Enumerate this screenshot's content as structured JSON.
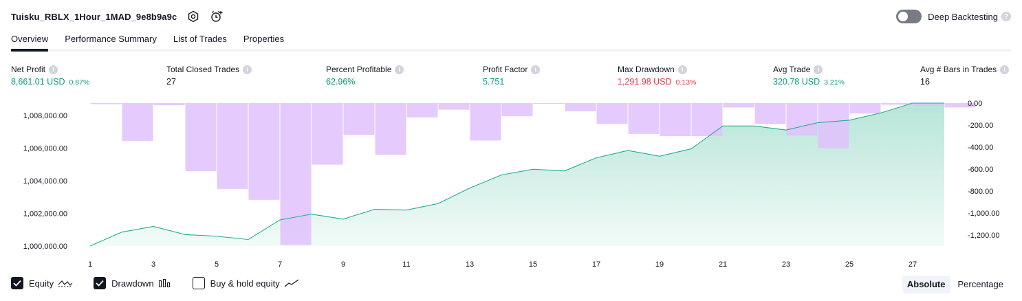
{
  "header": {
    "strategy_name": "Tuisku_RBLX_1Hour_1MAD_9e8b9a9c",
    "settings_icon": "settings-icon",
    "alert_icon": "add-alert-icon",
    "deep_backtesting_label": "Deep Backtesting",
    "deep_backtesting_on": false
  },
  "tabs": [
    {
      "label": "Overview",
      "active": true
    },
    {
      "label": "Performance Summary",
      "active": false
    },
    {
      "label": "List of Trades",
      "active": false
    },
    {
      "label": "Properties",
      "active": false
    }
  ],
  "metrics": [
    {
      "label": "Net Profit",
      "value": "8,661.01 USD",
      "pct": "0.87%",
      "tone": "pos"
    },
    {
      "label": "Total Closed Trades",
      "value": "27",
      "pct": "",
      "tone": "neu"
    },
    {
      "label": "Percent Profitable",
      "value": "62.96%",
      "pct": "",
      "tone": "pos"
    },
    {
      "label": "Profit Factor",
      "value": "5.751",
      "pct": "",
      "tone": "pos"
    },
    {
      "label": "Max Drawdown",
      "value": "1,291.98 USD",
      "pct": "0.13%",
      "tone": "neg"
    },
    {
      "label": "Avg Trade",
      "value": "320.78 USD",
      "pct": "3.21%",
      "tone": "pos"
    },
    {
      "label": "Avg # Bars in Trades",
      "value": "16",
      "pct": "",
      "tone": "neu"
    }
  ],
  "legend": {
    "equity_label": "Equity",
    "equity_checked": true,
    "drawdown_label": "Drawdown",
    "drawdown_checked": true,
    "buyhold_label": "Buy & hold equity",
    "buyhold_checked": false
  },
  "modes": {
    "absolute_label": "Absolute",
    "percentage_label": "Percentage",
    "active": "Absolute"
  },
  "colors": {
    "equity_line": "#22ab94",
    "equity_fill_top": "#b7e5d8",
    "equity_fill_bottom": "#f2fbf8",
    "drawdown_bar": "#e1c1fd",
    "positive": "#089981",
    "negative": "#f23645"
  },
  "chart_data": {
    "type": "area",
    "x_ticks": [
      "1",
      "3",
      "5",
      "7",
      "9",
      "11",
      "13",
      "15",
      "17",
      "19",
      "21",
      "23",
      "25",
      "27"
    ],
    "y_left_ticks": [
      "1,000,000.00",
      "1,002,000.00",
      "1,004,000.00",
      "1,006,000.00",
      "1,008,000.00"
    ],
    "y_left_values": [
      1000000,
      1002000,
      1004000,
      1006000,
      1008000
    ],
    "y_left_range": [
      1000000,
      1008750
    ],
    "y_right_ticks": [
      "0.00",
      "-200.00",
      "-400.00",
      "-600.00",
      "-800.00",
      "-1,000.00",
      "-1,200.00"
    ],
    "y_right_values": [
      0,
      -200,
      -400,
      -600,
      -800,
      -1000,
      -1200
    ],
    "y_right_range": [
      -1300,
      0
    ],
    "series": [
      {
        "name": "Equity",
        "x": [
          1,
          2,
          3,
          4,
          5,
          6,
          7,
          8,
          9,
          10,
          11,
          12,
          13,
          14,
          15,
          16,
          17,
          18,
          19,
          20,
          21,
          22,
          23,
          24,
          25,
          26,
          27,
          28
        ],
        "values": [
          1000000,
          1000850,
          1001200,
          1000700,
          1000600,
          1000400,
          1001600,
          1001950,
          1001650,
          1002250,
          1002200,
          1002600,
          1003550,
          1004350,
          1004700,
          1004600,
          1005400,
          1005850,
          1005500,
          1005950,
          1007350,
          1007350,
          1007100,
          1007550,
          1007700,
          1008150,
          1008750,
          1008750
        ]
      },
      {
        "name": "Drawdown",
        "x": [
          1,
          2,
          3,
          4,
          5,
          6,
          7,
          8,
          9,
          10,
          11,
          12,
          13,
          14,
          15,
          16,
          17,
          18,
          19,
          20,
          21,
          22,
          23,
          24,
          25,
          26,
          27,
          28
        ],
        "values": [
          -10,
          -345,
          -20,
          -620,
          -780,
          -880,
          -1290,
          -560,
          -290,
          -470,
          -130,
          -60,
          -340,
          -120,
          -5,
          -75,
          -190,
          -280,
          -300,
          -300,
          -40,
          -190,
          -295,
          -410,
          -95,
          -15,
          -25,
          -40
        ]
      }
    ]
  }
}
